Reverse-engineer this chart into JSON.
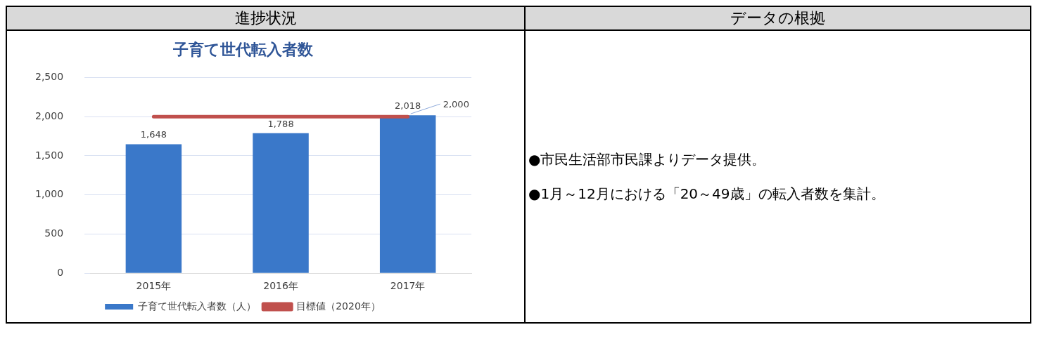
{
  "chart_data": {
    "type": "bar",
    "title": "子育て世代転入者数",
    "categories": [
      "2015年",
      "2016年",
      "2017年"
    ],
    "series": [
      {
        "name": "子育て世代転入者数（人）",
        "color": "#3a78c9",
        "values": [
          1648,
          1788,
          2018
        ],
        "value_labels": [
          "1,648",
          "1,788",
          "2,018"
        ]
      },
      {
        "name": "目標値（2020年）",
        "type": "line",
        "color": "#c0504d",
        "values": [
          2000,
          2000,
          2000
        ],
        "value_labels": [
          null,
          null,
          "2,000"
        ]
      }
    ],
    "ylim": [
      0,
      2500
    ],
    "yticks": [
      {
        "value": 0,
        "label": "0"
      },
      {
        "value": 500,
        "label": "500"
      },
      {
        "value": 1000,
        "label": "1,000"
      },
      {
        "value": 1500,
        "label": "1,500"
      },
      {
        "value": 2000,
        "label": "2,000"
      },
      {
        "value": 2500,
        "label": "2,500"
      }
    ],
    "grid": "y",
    "legend": "bottom",
    "marker": "none",
    "line_style": "solid",
    "annotations": [
      "進捗状況",
      "データの根拠",
      "●市民生活部市民課よりデータ提供。",
      "●1月～12月における「20～49歳」の転入者数を集計。"
    ]
  }
}
